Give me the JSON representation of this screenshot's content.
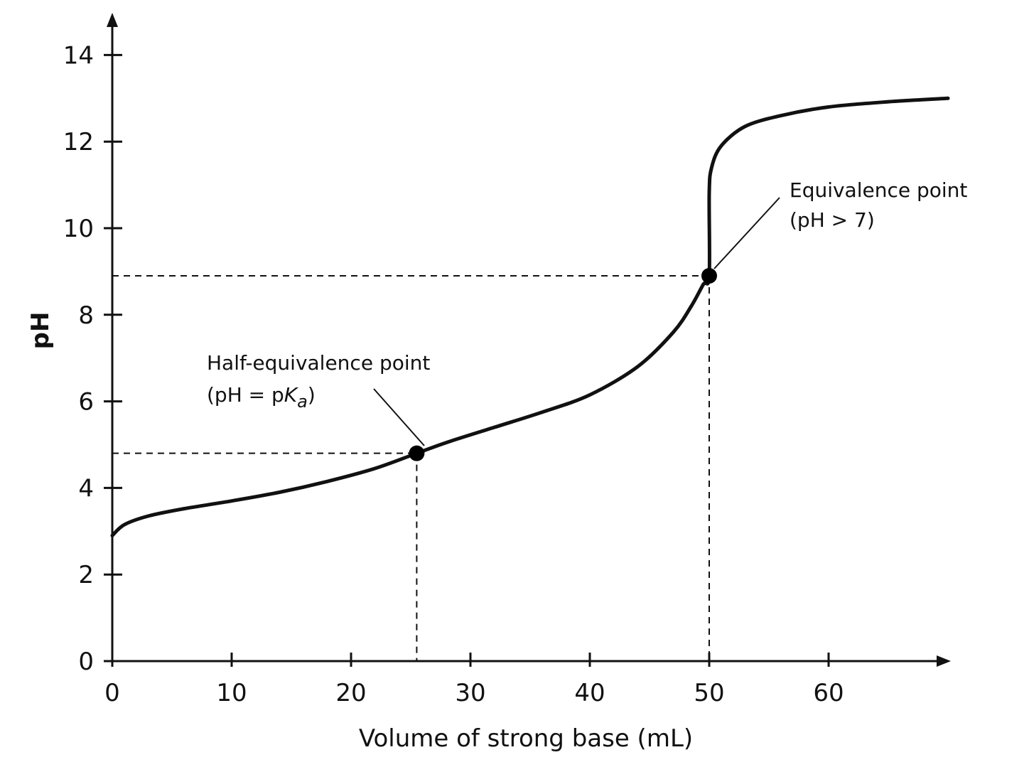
{
  "chart_data": {
    "type": "line",
    "title": "",
    "xlabel": "Volume of strong base (mL)",
    "ylabel": "pH",
    "xlim": [
      0,
      70
    ],
    "ylim": [
      0,
      14
    ],
    "xticks": [
      0,
      10,
      20,
      30,
      40,
      50,
      60
    ],
    "yticks": [
      0,
      2,
      4,
      6,
      8,
      10,
      12,
      14
    ],
    "grid": false,
    "legend": "none",
    "color": "#111111",
    "series": [
      {
        "x": [
          0,
          1,
          3,
          6,
          10,
          14,
          18,
          22,
          25.5,
          28,
          32,
          36,
          40,
          44,
          47,
          48.5,
          49.5,
          50,
          50,
          50.2,
          51,
          53,
          56,
          60,
          65,
          70
        ],
        "y": [
          2.9,
          3.15,
          3.35,
          3.52,
          3.7,
          3.9,
          4.15,
          4.45,
          4.8,
          5.05,
          5.4,
          5.75,
          6.15,
          6.8,
          7.6,
          8.2,
          8.7,
          8.9,
          10.8,
          11.4,
          11.9,
          12.35,
          12.6,
          12.8,
          12.92,
          13.0
        ]
      }
    ],
    "points": [
      {
        "x": 25.5,
        "y": 4.8
      },
      {
        "x": 50,
        "y": 8.9
      }
    ],
    "annotations": [
      {
        "line1": "Half-equivalence point",
        "line2_prefix": "(pH = p",
        "line2_italic": "K",
        "line2_sub": "a",
        "line2_suffix": ")"
      },
      {
        "line1": "Equivalence point",
        "line2": "(pH > 7)"
      }
    ]
  }
}
